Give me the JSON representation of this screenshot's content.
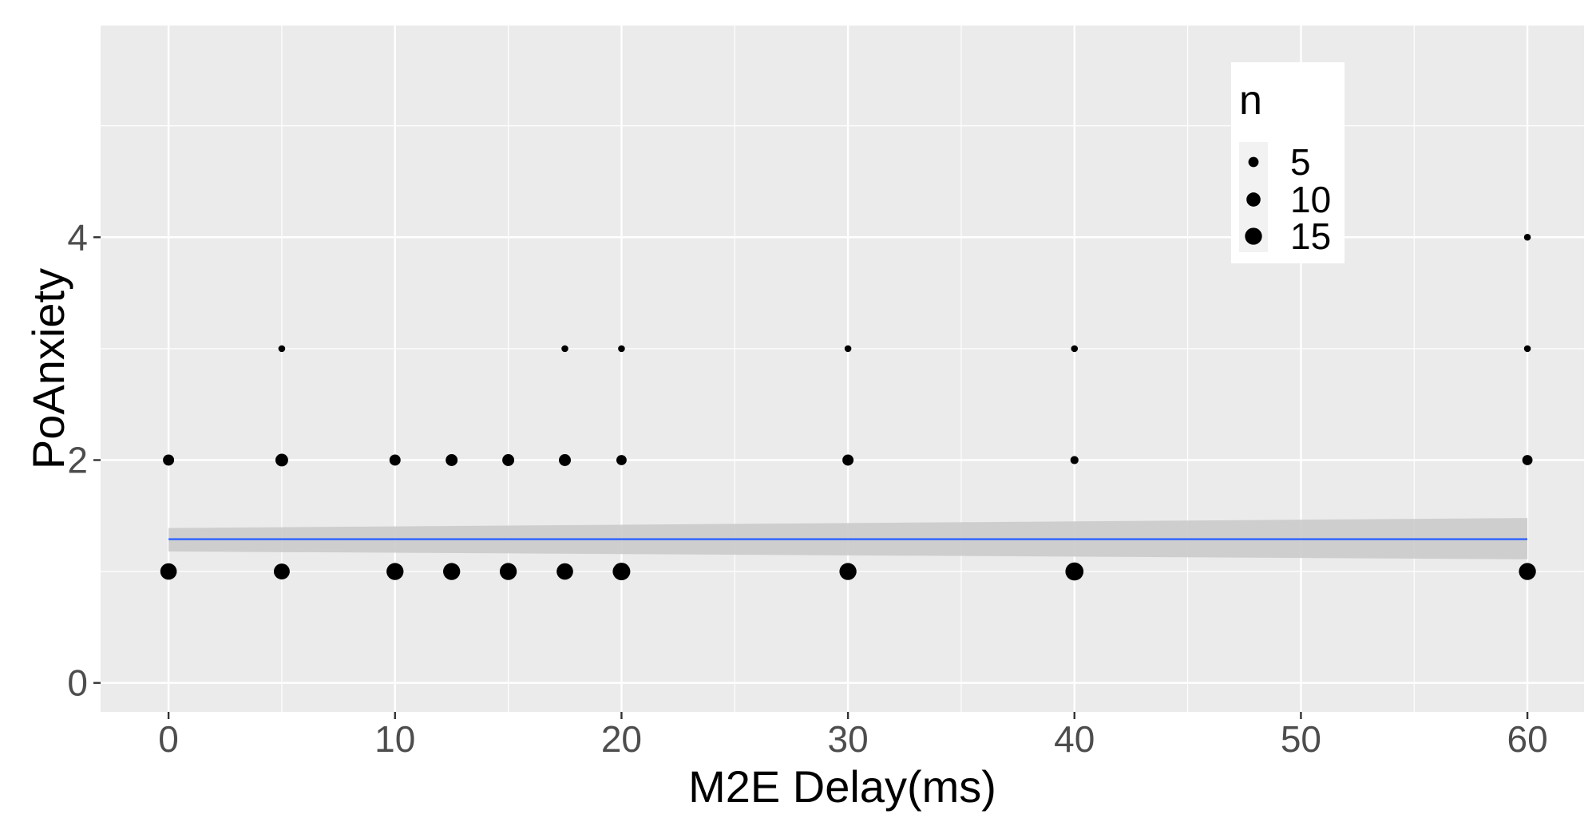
{
  "chart_data": {
    "type": "scatter",
    "xlabel": "M2E Delay(ms)",
    "ylabel": "PoAnxiety",
    "xlim": [
      -3,
      62.5
    ],
    "ylim": [
      -0.26,
      5.9
    ],
    "x_ticks": [
      0,
      10,
      20,
      30,
      40,
      50,
      60
    ],
    "x_tick_labels": [
      "0",
      "10",
      "20",
      "30",
      "40",
      "50",
      "60"
    ],
    "y_ticks": [
      0,
      2,
      4
    ],
    "y_tick_labels": [
      "0",
      "2",
      "4"
    ],
    "grid": true,
    "legend": {
      "title": "n",
      "position": "top-right",
      "entries": [
        {
          "label": "5",
          "n": 5
        },
        {
          "label": "10",
          "n": 10
        },
        {
          "label": "15",
          "n": 15
        }
      ]
    },
    "size_variable": "n",
    "points": [
      {
        "x": 0,
        "y": 2,
        "n": 6
      },
      {
        "x": 0,
        "y": 1,
        "n": 14
      },
      {
        "x": 5,
        "y": 3,
        "n": 2
      },
      {
        "x": 5,
        "y": 2,
        "n": 8
      },
      {
        "x": 5,
        "y": 1,
        "n": 13
      },
      {
        "x": 10,
        "y": 2,
        "n": 6
      },
      {
        "x": 10,
        "y": 1,
        "n": 15
      },
      {
        "x": 12.5,
        "y": 2,
        "n": 7
      },
      {
        "x": 12.5,
        "y": 1,
        "n": 15
      },
      {
        "x": 15,
        "y": 2,
        "n": 7
      },
      {
        "x": 15,
        "y": 1,
        "n": 15
      },
      {
        "x": 17.5,
        "y": 3,
        "n": 2
      },
      {
        "x": 17.5,
        "y": 2,
        "n": 7
      },
      {
        "x": 17.5,
        "y": 1,
        "n": 14
      },
      {
        "x": 20,
        "y": 3,
        "n": 2
      },
      {
        "x": 20,
        "y": 2,
        "n": 5
      },
      {
        "x": 20,
        "y": 1,
        "n": 16
      },
      {
        "x": 30,
        "y": 3,
        "n": 2
      },
      {
        "x": 30,
        "y": 2,
        "n": 6
      },
      {
        "x": 30,
        "y": 1,
        "n": 15
      },
      {
        "x": 40,
        "y": 3,
        "n": 2
      },
      {
        "x": 40,
        "y": 2,
        "n": 3
      },
      {
        "x": 40,
        "y": 1,
        "n": 17
      },
      {
        "x": 60,
        "y": 4,
        "n": 2
      },
      {
        "x": 60,
        "y": 3,
        "n": 2
      },
      {
        "x": 60,
        "y": 2,
        "n": 5
      },
      {
        "x": 60,
        "y": 1,
        "n": 15
      }
    ],
    "trend": {
      "method": "linear",
      "x": [
        0,
        60
      ],
      "y": [
        1.29,
        1.29
      ],
      "ci_lower": [
        1.18,
        1.11
      ],
      "ci_upper": [
        1.39,
        1.48
      ]
    },
    "colors": {
      "panel": "#ebebeb",
      "grid": "#ffffff",
      "points": "#000000",
      "trend_line": "#3366ff",
      "ci_band": "#cbcbcb"
    }
  }
}
